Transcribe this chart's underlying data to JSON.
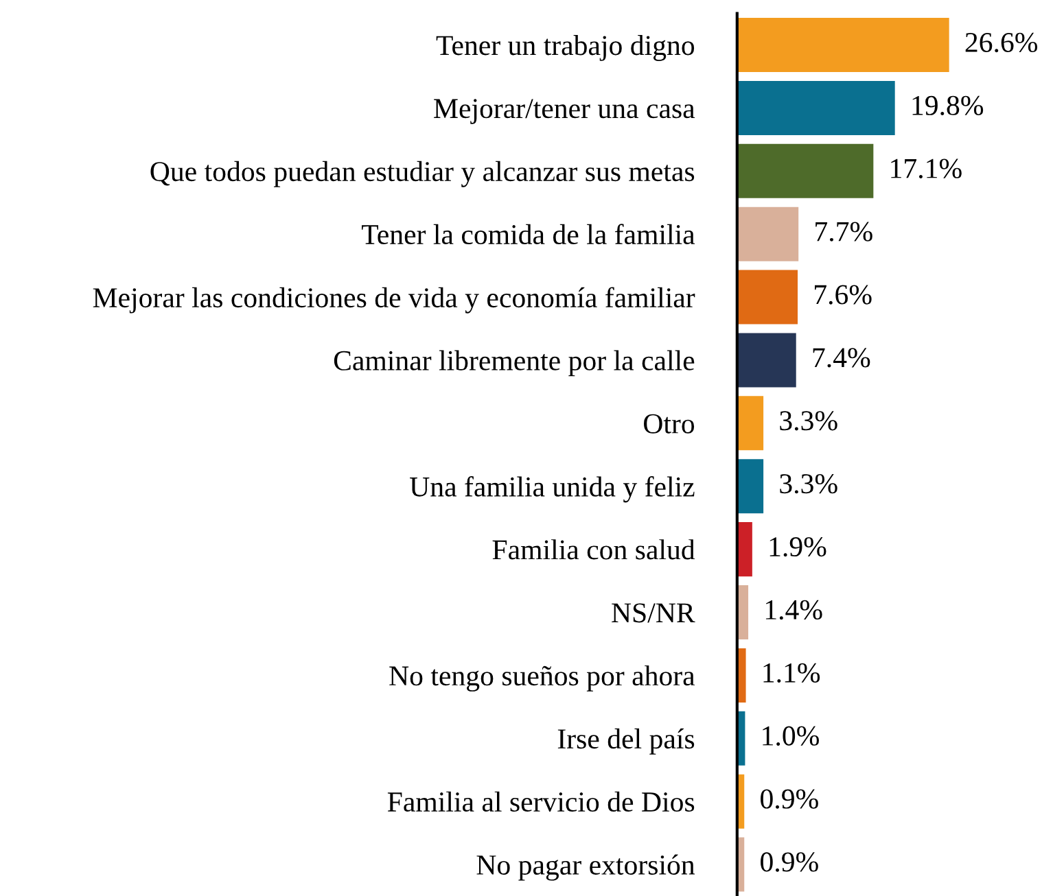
{
  "chart_data": {
    "type": "bar",
    "orientation": "horizontal",
    "categories": [
      "Tener un trabajo digno",
      "Mejorar/tener una casa",
      "Que todos puedan estudiar y alcanzar sus metas",
      "Tener la comida de la familia",
      "Mejorar las condiciones de vida y economía familiar",
      "Caminar libremente por la calle",
      "Otro",
      "Una familia unida y feliz",
      "Familia con salud",
      "NS/NR",
      "No tengo sueños por ahora",
      "Irse del país",
      "Familia al servicio de Dios",
      "No pagar extorsión"
    ],
    "values": [
      26.6,
      19.8,
      17.1,
      7.7,
      7.6,
      7.4,
      3.3,
      3.3,
      1.9,
      1.4,
      1.1,
      1.0,
      0.9,
      0.9
    ],
    "value_labels": [
      "26.6%",
      "19.8%",
      "17.1%",
      "7.7%",
      "7.6%",
      "7.4%",
      "3.3%",
      "3.3%",
      "1.9%",
      "1.4%",
      "1.1%",
      "1.0%",
      "0.9%",
      "0.9%"
    ],
    "colors": [
      "#f39c1f",
      "#0a7090",
      "#4e6b2a",
      "#d9b09a",
      "#e06a14",
      "#263656",
      "#f39c1f",
      "#0a7090",
      "#cc2027",
      "#d9b09a",
      "#e06a14",
      "#0a7090",
      "#f39c1f",
      "#d9b09a"
    ],
    "tick_labels": "y",
    "grid": false,
    "legend": false
  }
}
